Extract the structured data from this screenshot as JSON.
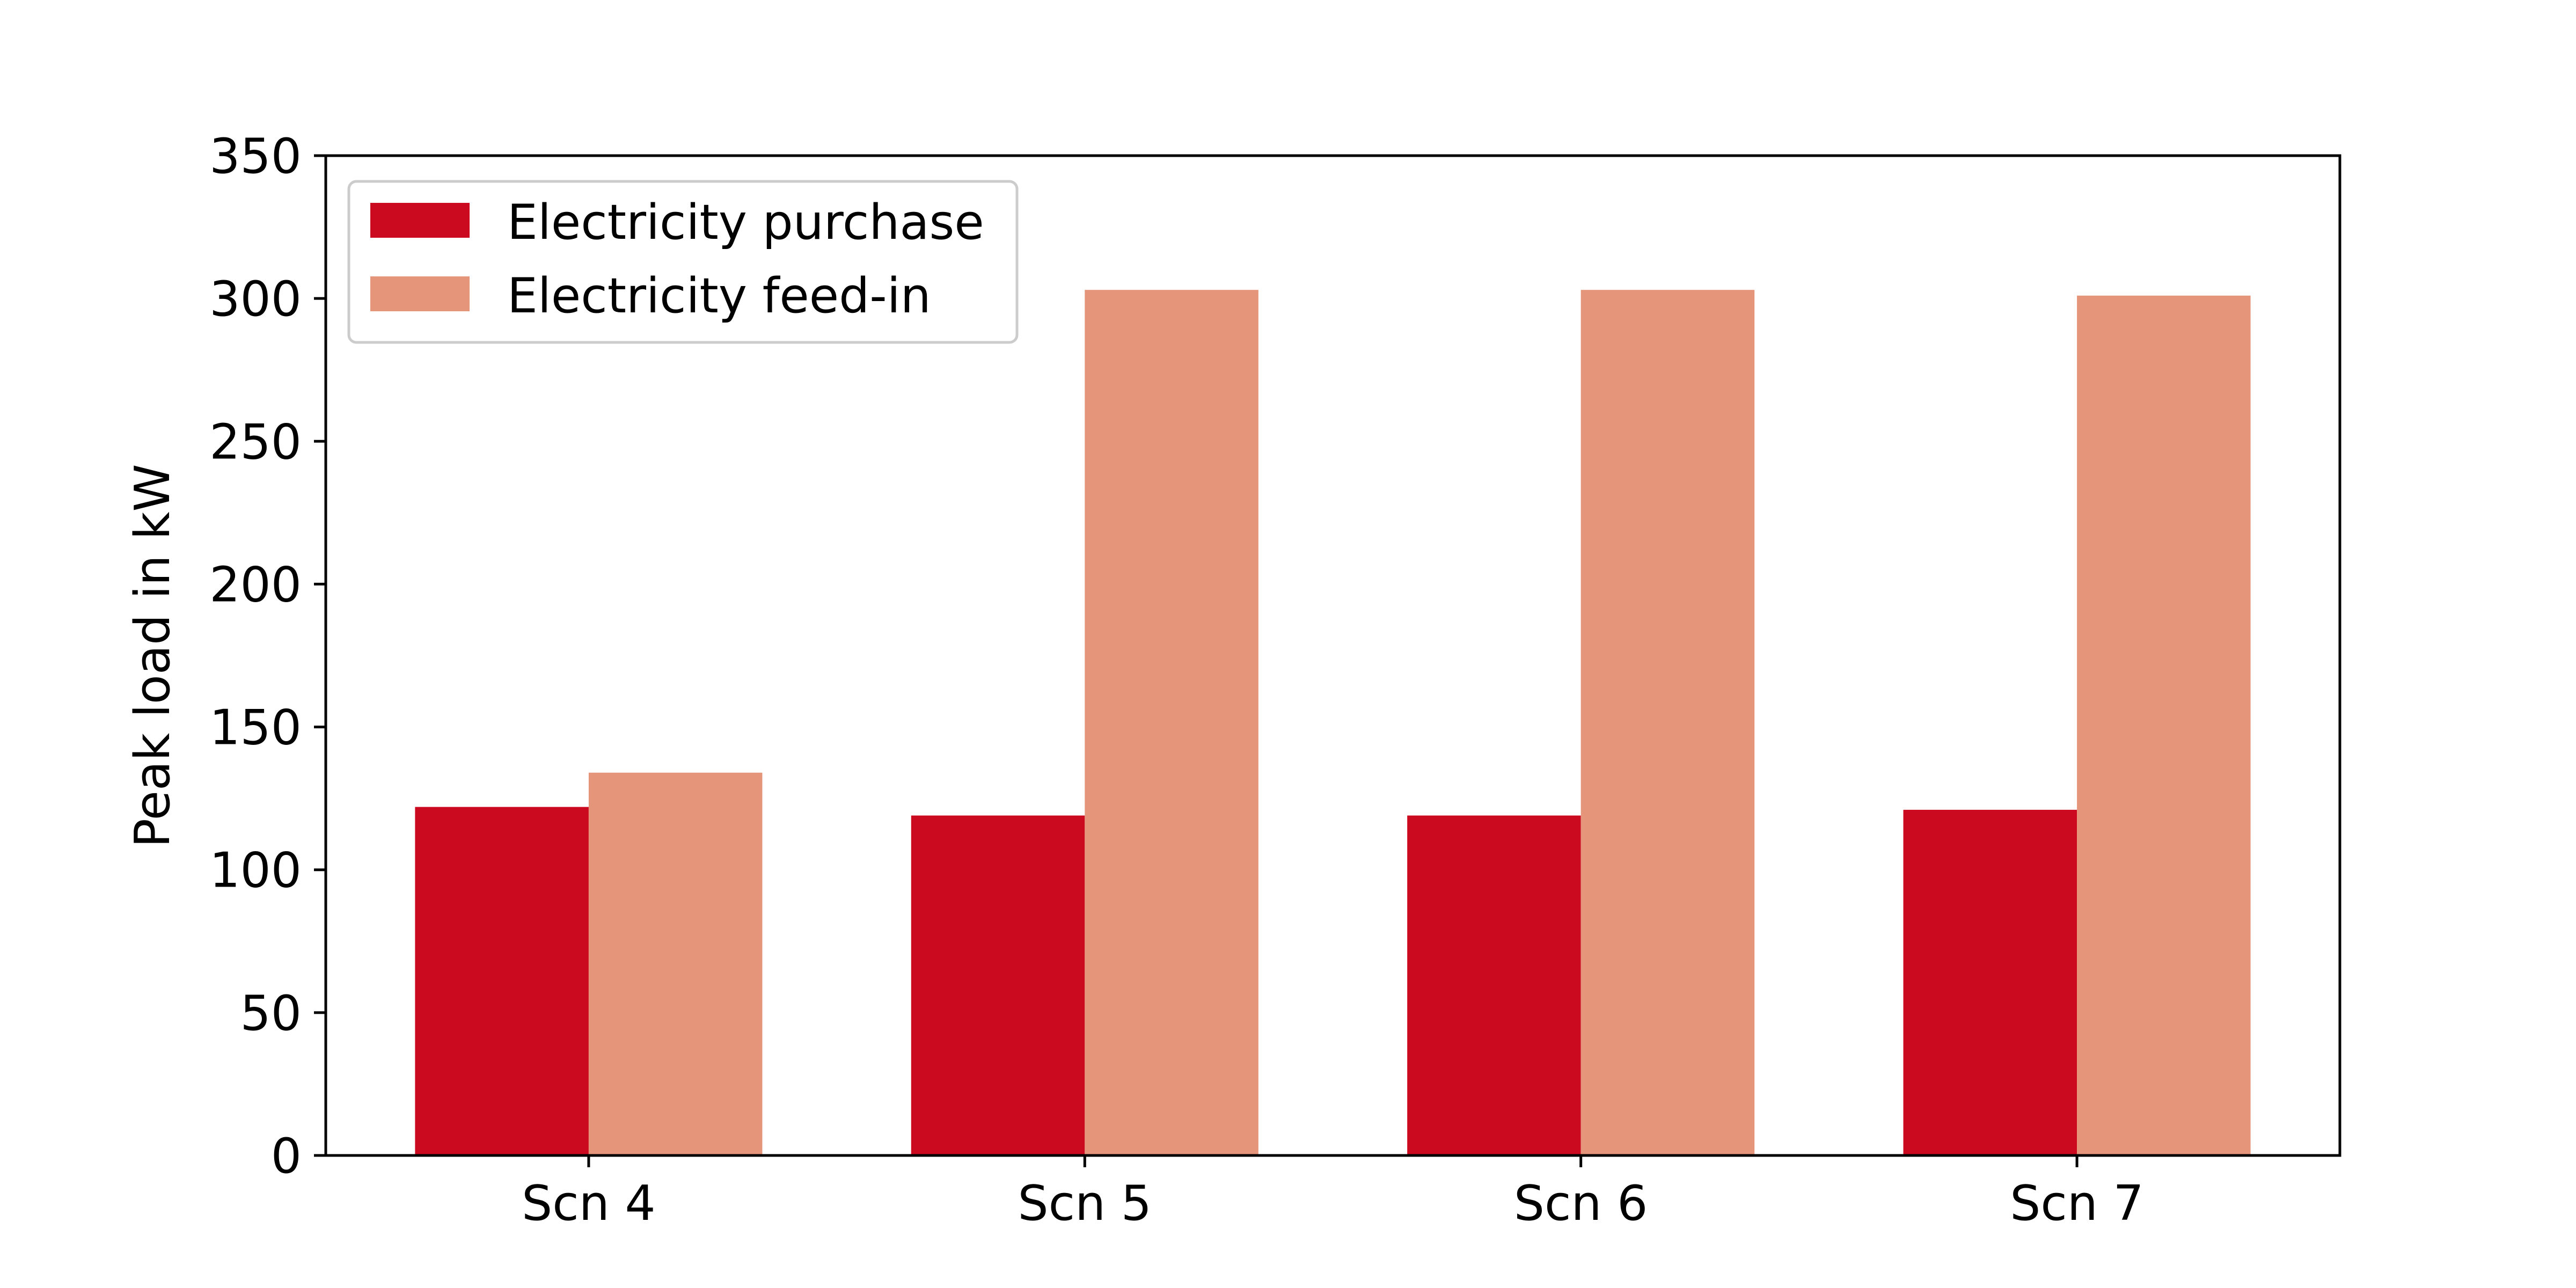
{
  "chart_data": {
    "type": "bar",
    "categories": [
      "Scn 4",
      "Scn 5",
      "Scn 6",
      "Scn 7"
    ],
    "series": [
      {
        "name": "Electricity purchase",
        "values": [
          122,
          119,
          119,
          121
        ],
        "color": "#cb0a1f"
      },
      {
        "name": "Electricity feed-in",
        "values": [
          134,
          303,
          303,
          301
        ],
        "color": "#e5967a"
      }
    ],
    "title": "",
    "xlabel": "",
    "ylabel": "Peak load in kW",
    "ylim": [
      0,
      350
    ],
    "yticks": [
      0,
      50,
      100,
      150,
      200,
      250,
      300,
      350
    ],
    "grid": false,
    "legend_position": "upper-left"
  }
}
